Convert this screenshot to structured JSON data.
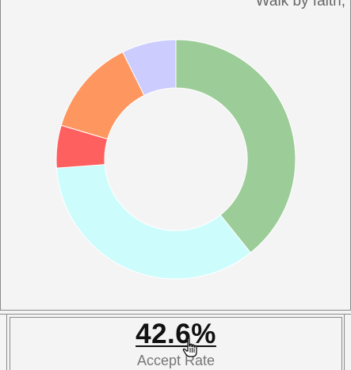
{
  "header": {
    "caption": "Walk by faith,"
  },
  "chart_data": {
    "type": "pie",
    "donut": true,
    "slices": [
      {
        "value": 37.5,
        "color": "#9ccc98"
      },
      {
        "value": 33.0,
        "color": "#ccfcfc"
      },
      {
        "value": 5.5,
        "color": "#fe6060"
      },
      {
        "value": 12.5,
        "color": "#fe9660"
      },
      {
        "value": 7.0,
        "color": "#ccccfe"
      }
    ]
  },
  "stats": {
    "value": "42.6%",
    "label": "Accept Rate"
  },
  "icons": {
    "cursor": "hand-pointer-icon"
  }
}
